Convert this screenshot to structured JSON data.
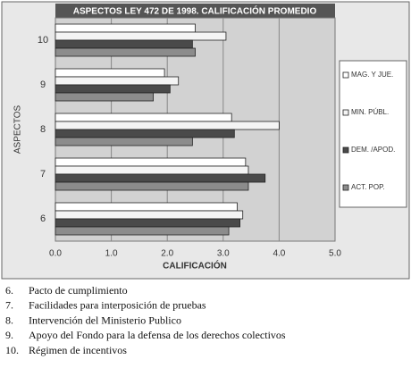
{
  "chart_data": {
    "type": "bar",
    "orientation": "horizontal",
    "title": "ASPECTOS LEY 472 DE 1998. CALIFICACIÓN PROMEDIO",
    "x_label": "CALIFICACIÓN",
    "y_label": "ASPECTOS",
    "categories": [
      "6",
      "7",
      "8",
      "9",
      "10"
    ],
    "series": [
      {
        "name": "MAG. Y JUE.",
        "color": "#ffffff",
        "values": [
          3.25,
          3.4,
          3.15,
          1.95,
          2.5
        ]
      },
      {
        "name": "MIN. PÚBL.",
        "color": "#f4f4f4",
        "values": [
          3.35,
          3.45,
          4.0,
          2.2,
          3.05
        ]
      },
      {
        "name": "DEM. /APOD.",
        "color": "#4a4a4a",
        "values": [
          3.3,
          3.75,
          3.2,
          2.05,
          2.45
        ]
      },
      {
        "name": "ACT. POP.",
        "color": "#8c8c8c",
        "values": [
          3.1,
          3.45,
          2.45,
          1.75,
          2.5
        ]
      }
    ],
    "xlim": [
      0,
      5
    ],
    "xticks": [
      {
        "value": 0,
        "label": "0.0"
      },
      {
        "value": 1,
        "label": "1.0"
      },
      {
        "value": 2,
        "label": "2.0"
      },
      {
        "value": 3,
        "label": "3.0"
      },
      {
        "value": 4,
        "label": "4.0"
      },
      {
        "value": 5,
        "label": "5.0"
      }
    ],
    "grid": true,
    "legend_position": "right"
  },
  "notes": [
    {
      "number": "6.",
      "text": "Pacto de cumplimiento"
    },
    {
      "number": "7.",
      "text": "Facilidades para interposición de pruebas"
    },
    {
      "number": "8.",
      "text": "Intervención del Ministerio Publico"
    },
    {
      "number": "9.",
      "text": "Apoyo del Fondo para la defensa de los derechos colectivos"
    },
    {
      "number": "10.",
      "text": "Régimen de incentivos"
    }
  ]
}
